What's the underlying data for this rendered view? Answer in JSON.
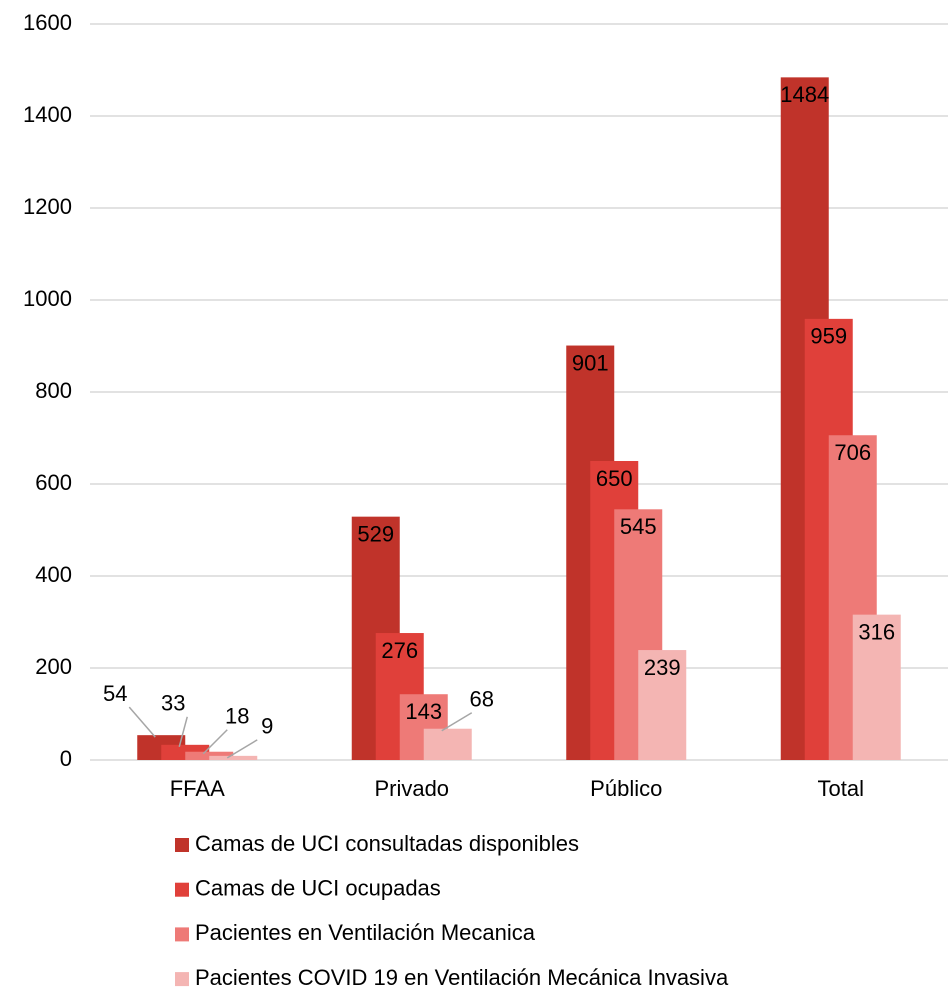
{
  "chart_data": {
    "type": "bar",
    "categories": [
      "FFAA",
      "Privado",
      "Público",
      "Total"
    ],
    "series": [
      {
        "name": "Camas de UCI consultadas disponibles",
        "color": "#c0332a",
        "values": [
          54,
          529,
          901,
          1484
        ]
      },
      {
        "name": "Camas de UCI ocupadas",
        "color": "#e0403a",
        "values": [
          33,
          276,
          650,
          959
        ]
      },
      {
        "name": "Pacientes en Ventilación Mecanica",
        "color": "#ee7a77",
        "values": [
          18,
          143,
          545,
          706
        ]
      },
      {
        "name": "Pacientes COVID 19 en Ventilación Mecánica Invasiva",
        "color": "#f4b5b3",
        "values": [
          9,
          68,
          239,
          316
        ]
      }
    ],
    "ylim": [
      0,
      1600
    ],
    "yticks": [
      0,
      200,
      400,
      600,
      800,
      1000,
      1200,
      1400,
      1600
    ],
    "grid": true
  }
}
